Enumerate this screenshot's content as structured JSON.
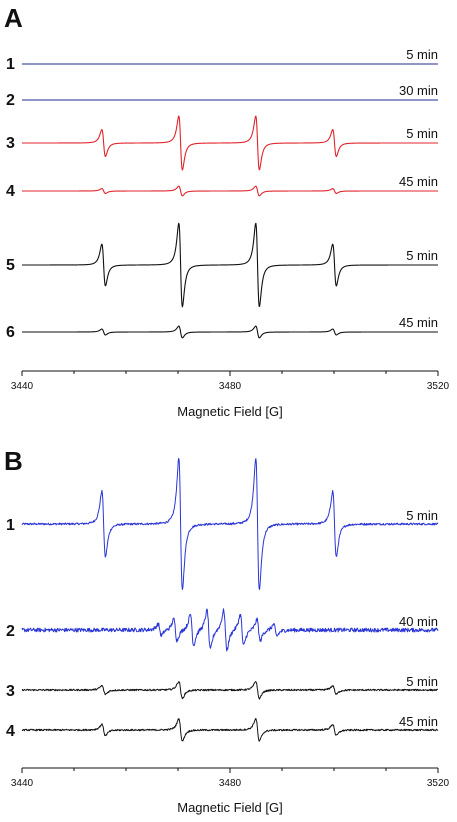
{
  "chart_data": [
    {
      "panel": "A",
      "type": "line",
      "xlabel": "Magnetic Field [G]",
      "xlim": [
        3440,
        3520
      ],
      "x_ticks": [
        3440,
        3480,
        3520
      ],
      "grid": false,
      "series": [
        {
          "name": "1",
          "time_label": "5 min",
          "color": "#1f2d8f",
          "amplitude": 0,
          "noise": 0
        },
        {
          "name": "2",
          "time_label": "30 min",
          "color": "#1f2d8f",
          "amplitude": 0,
          "noise": 0
        },
        {
          "name": "3",
          "time_label": "5 min",
          "color": "#e0242c",
          "amplitude": 1.0,
          "noise": 0
        },
        {
          "name": "4",
          "time_label": "45 min",
          "color": "#e0242c",
          "amplitude": 0.18,
          "noise": 0
        },
        {
          "name": "5",
          "time_label": "5 min",
          "color": "#111111",
          "amplitude": 1.55,
          "noise": 0
        },
        {
          "name": "6",
          "time_label": "45 min",
          "color": "#111111",
          "amplitude": 0.22,
          "noise": 0
        }
      ],
      "line_centers_G": [
        3455.7,
        3470.5,
        3485.3,
        3500.1
      ],
      "line_relative_intensity": [
        1,
        2,
        2,
        1
      ]
    },
    {
      "panel": "B",
      "type": "line",
      "xlabel": "Magnetic Field [G]",
      "xlim": [
        3440,
        3520
      ],
      "x_ticks": [
        3440,
        3480,
        3520
      ],
      "grid": false,
      "series": [
        {
          "name": "1",
          "time_label": "5 min",
          "color": "#2a35d6",
          "amplitude": 1.0,
          "noise": 0.015
        },
        {
          "name": "2",
          "time_label": "40 min",
          "color": "#2a35d6",
          "amplitude": 0.25,
          "noise": 0.03,
          "multiplet_lines_G": [
            3466.5,
            3469.5,
            3472.7,
            3475.9,
            3479.1,
            3482.3,
            3485.5,
            3488.7
          ],
          "multiplet_intensity": [
            0.7,
            1.3,
            1.9,
            2.4,
            2.4,
            1.9,
            1.3,
            0.7
          ]
        },
        {
          "name": "3",
          "time_label": "5 min",
          "color": "#111111",
          "amplitude": 0.13,
          "noise": 0.012
        },
        {
          "name": "4",
          "time_label": "45 min",
          "color": "#111111",
          "amplitude": 0.17,
          "noise": 0.012
        }
      ],
      "line_centers_G": [
        3455.7,
        3470.5,
        3485.3,
        3500.1
      ],
      "line_relative_intensity": [
        1,
        2,
        2,
        1
      ]
    }
  ],
  "panel_labels": [
    "A",
    "B"
  ]
}
